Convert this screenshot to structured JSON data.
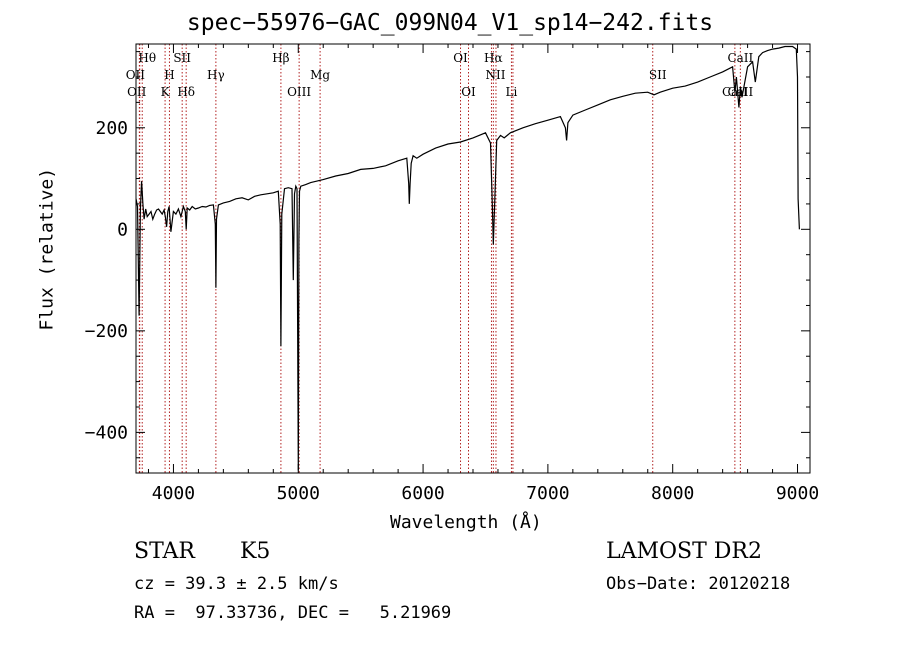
{
  "chart_data": {
    "type": "line",
    "title": "spec−55976−GAC_099N04_V1_sp14−242.fits",
    "xlabel": "Wavelength (Å)",
    "ylabel": "Flux (relative)",
    "xlim": [
      3700,
      9100
    ],
    "ylim": [
      -480,
      365
    ],
    "grid": false,
    "legend": "none",
    "x_ticks": [
      4000,
      5000,
      6000,
      7000,
      8000,
      9000
    ],
    "x_tick_labels": [
      "4000",
      "5000",
      "6000",
      "7000",
      "8000",
      "9000"
    ],
    "y_ticks": [
      -400,
      -200,
      0,
      200
    ],
    "y_tick_labels": [
      "−400",
      "−200",
      "0",
      "200"
    ],
    "line_color": "#000000",
    "marker_color": "#b22222",
    "series": [
      {
        "x": [
          3700,
          3712,
          3725,
          3735,
          3745,
          3755,
          3765,
          3778,
          3790,
          3805,
          3820,
          3835,
          3850,
          3865,
          3880,
          3895,
          3910,
          3925,
          3935,
          3945,
          3955,
          3965,
          3980,
          4000,
          4020,
          4040,
          4060,
          4080,
          4095,
          4102,
          4110,
          4130,
          4150,
          4175,
          4200,
          4230,
          4260,
          4290,
          4320,
          4335,
          4340,
          4345,
          4360,
          4400,
          4450,
          4500,
          4550,
          4600,
          4650,
          4700,
          4750,
          4800,
          4840,
          4855,
          4861,
          4868,
          4890,
          4920,
          4950,
          4960,
          4970,
          4980,
          4990,
          5000,
          5005,
          5010,
          5020,
          5060,
          5100,
          5150,
          5200,
          5300,
          5400,
          5500,
          5600,
          5700,
          5800,
          5870,
          5885,
          5890,
          5896,
          5905,
          5920,
          5950,
          6000,
          6100,
          6200,
          6300,
          6400,
          6500,
          6540,
          6555,
          6563,
          6572,
          6590,
          6620,
          6650,
          6700,
          6800,
          6900,
          7000,
          7100,
          7140,
          7150,
          7160,
          7200,
          7300,
          7400,
          7500,
          7600,
          7700,
          7800,
          7850,
          7900,
          8000,
          8100,
          8200,
          8300,
          8400,
          8480,
          8498,
          8510,
          8530,
          8542,
          8555,
          8600,
          8640,
          8662,
          8690,
          8720,
          8760,
          8800,
          8850,
          8900,
          8960,
          8990,
          9000,
          9005,
          9015
        ],
        "y": [
          60,
          45,
          -170,
          40,
          95,
          50,
          20,
          40,
          25,
          30,
          35,
          20,
          30,
          38,
          40,
          35,
          30,
          38,
          25,
          5,
          35,
          45,
          -5,
          35,
          30,
          40,
          25,
          45,
          35,
          0,
          42,
          38,
          45,
          40,
          42,
          45,
          44,
          47,
          48,
          10,
          -115,
          20,
          48,
          52,
          55,
          60,
          62,
          58,
          65,
          68,
          70,
          72,
          75,
          10,
          -230,
          30,
          80,
          82,
          80,
          -100,
          70,
          85,
          80,
          -475,
          -20,
          75,
          85,
          88,
          92,
          95,
          98,
          105,
          110,
          118,
          120,
          125,
          135,
          140,
          90,
          50,
          90,
          130,
          145,
          140,
          148,
          160,
          168,
          172,
          180,
          190,
          170,
          50,
          -30,
          40,
          175,
          185,
          180,
          190,
          200,
          208,
          215,
          222,
          200,
          175,
          210,
          225,
          235,
          245,
          255,
          262,
          268,
          270,
          265,
          270,
          278,
          282,
          290,
          300,
          310,
          320,
          270,
          300,
          240,
          280,
          260,
          320,
          330,
          290,
          340,
          348,
          352,
          355,
          357,
          360,
          360,
          355,
          300,
          60,
          0
        ]
      }
    ],
    "line_ids": [
      {
        "label": "Hθ",
        "x": 3750,
        "row": 1
      },
      {
        "label": "OII",
        "x": 3727,
        "row": 2
      },
      {
        "label": "OII",
        "x": 3730,
        "row": 3
      },
      {
        "label": "SII",
        "x": 4070,
        "row": 1
      },
      {
        "label": "H",
        "x": 3968,
        "row": 2
      },
      {
        "label": "K",
        "x": 3933,
        "row": 3
      },
      {
        "label": "Hδ",
        "x": 4102,
        "row": 3
      },
      {
        "label": "Hγ",
        "x": 4340,
        "row": 2
      },
      {
        "label": "Hβ",
        "x": 4861,
        "row": 1
      },
      {
        "label": "OIII",
        "x": 5007,
        "row": 3
      },
      {
        "label": "Mg",
        "x": 5175,
        "row": 2
      },
      {
        "label": "OI",
        "x": 6300,
        "row": 1
      },
      {
        "label": "OI",
        "x": 6364,
        "row": 3
      },
      {
        "label": "Hα",
        "x": 6563,
        "row": 1
      },
      {
        "label": "NII",
        "x": 6548,
        "row": 2
      },
      {
        "label": "NII",
        "x": 6584,
        "row": 2
      },
      {
        "label": "Li",
        "x": 6708,
        "row": 3
      },
      {
        "label": "SII",
        "x": 6720,
        "row": 2
      },
      {
        "label": "SII",
        "x": 7840,
        "row": 2
      },
      {
        "label": "CaII",
        "x": 8542,
        "row": 1
      },
      {
        "label": "CaII",
        "x": 8498,
        "row": 3
      },
      {
        "label": "CaII",
        "x": 8542,
        "row": 3
      }
    ],
    "line_id_text": {
      "Hθ": "Hθ",
      "OII": "OII",
      "SII": "SII",
      "H": "H",
      "K": "K",
      "Hδ": "Hδ",
      "Hγ": "Hγ",
      "Hβ": "Hβ",
      "OIII": "OIII",
      "Mg": "Mg",
      "OI": "OI",
      "Hα": "Hα",
      "NII": "NII",
      "Li": "Li",
      "CaII": "CaII"
    }
  },
  "footer": {
    "object_class": "STAR",
    "subclass": "K5",
    "survey": "LAMOST DR2",
    "redshift": "cz = 39.3 ± 2.5 km/s",
    "obs_date": "Obs−Date: 20120218",
    "coords": "RA =  97.33736, DEC =   5.21969"
  }
}
